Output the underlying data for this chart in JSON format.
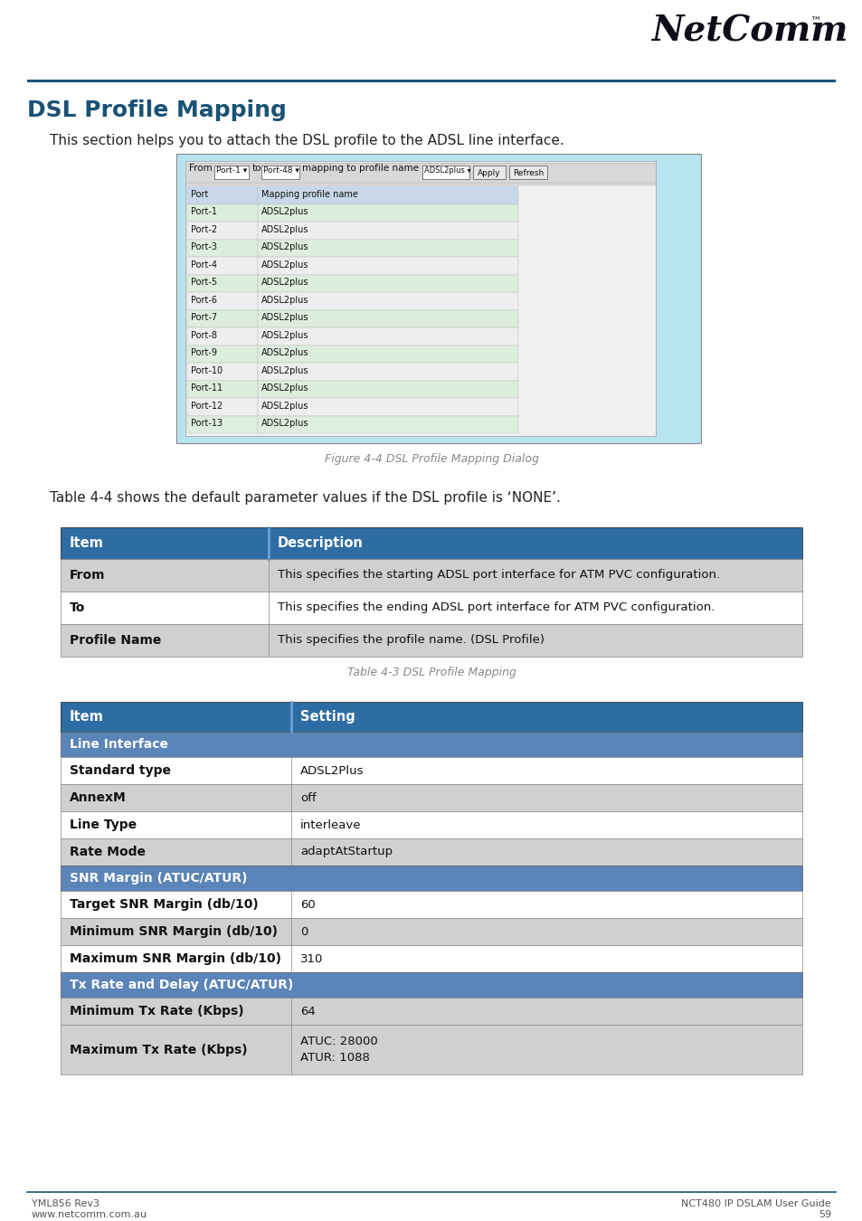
{
  "page_bg": "#ffffff",
  "header_line_color": "#1a5276",
  "title": "DSL Profile Mapping",
  "title_color": "#1a5276",
  "subtitle": "This section helps you to attach the DSL profile to the ADSL line interface.",
  "figure_caption1": "Figure 4-4 DSL Profile Mapping Dialog",
  "para_text": "Table 4-4 shows the default parameter values if the DSL profile is ‘NONE’.",
  "table_caption2": "Table 4-3 DSL Profile Mapping",
  "table1_header": [
    "Item",
    "Description"
  ],
  "table1_header_bg": "#2e6da4",
  "table1_header_color": "#ffffff",
  "table1_rows": [
    [
      "From",
      "This specifies the starting ADSL port interface for ATM PVC configuration."
    ],
    [
      "To",
      "This specifies the ending ADSL port interface for ATM PVC configuration."
    ],
    [
      "Profile Name",
      "This specifies the profile name. (DSL Profile)"
    ]
  ],
  "table1_row_bg_odd": "#d0d0d0",
  "table1_row_bg_even": "#ffffff",
  "table2_header": [
    "Item",
    "Setting"
  ],
  "table2_header_bg": "#2e6da4",
  "table2_header_color": "#ffffff",
  "table2_rows": [
    {
      "type": "section",
      "col1": "Line Interface",
      "col2": ""
    },
    {
      "type": "data_even",
      "col1": "Standard type",
      "col2": "ADSL2Plus"
    },
    {
      "type": "data_odd",
      "col1": "AnnexM",
      "col2": "off"
    },
    {
      "type": "data_even",
      "col1": "Line Type",
      "col2": "interleave"
    },
    {
      "type": "data_odd",
      "col1": "Rate Mode",
      "col2": "adaptAtStartup"
    },
    {
      "type": "section",
      "col1": "SNR Margin (ATUC/ATUR)",
      "col2": ""
    },
    {
      "type": "data_even",
      "col1": "Target SNR Margin (db/10)",
      "col2": "60"
    },
    {
      "type": "data_odd",
      "col1": "Minimum SNR Margin (db/10)",
      "col2": "0"
    },
    {
      "type": "data_even",
      "col1": "Maximum SNR Margin (db/10)",
      "col2": "310"
    },
    {
      "type": "section",
      "col1": "Tx Rate and Delay (ATUC/ATUR)",
      "col2": ""
    },
    {
      "type": "data_odd",
      "col1": "Minimum Tx Rate (Kbps)",
      "col2": "64"
    },
    {
      "type": "data_multi",
      "col1": "Maximum Tx Rate (Kbps)",
      "col2": "ATUC: 28000\nATUR: 1088"
    }
  ],
  "table2_section_bg": "#5b84b8",
  "table2_section_color": "#ffffff",
  "table2_odd_bg": "#d0d0d0",
  "table2_even_bg": "#ffffff",
  "port_rows": [
    [
      "Port",
      "Mapping profile name"
    ],
    [
      "Port-1",
      "ADSL2plus"
    ],
    [
      "Port-2",
      "ADSL2plus"
    ],
    [
      "Port-3",
      "ADSL2plus"
    ],
    [
      "Port-4",
      "ADSL2plus"
    ],
    [
      "Port-5",
      "ADSL2plus"
    ],
    [
      "Port-6",
      "ADSL2plus"
    ],
    [
      "Port-7",
      "ADSL2plus"
    ],
    [
      "Port-8",
      "ADSL2plus"
    ],
    [
      "Port-9",
      "ADSL2plus"
    ],
    [
      "Port-10",
      "ADSL2plus"
    ],
    [
      "Port-11",
      "ADSL2plus"
    ],
    [
      "Port-12",
      "ADSL2plus"
    ],
    [
      "Port-13",
      "ADSL2plus"
    ]
  ],
  "footer_left1": "YML856 Rev3",
  "footer_left2": "www.netcomm.com.au",
  "footer_right1": "NCT480 IP DSLAM User Guide",
  "footer_right2": "59"
}
